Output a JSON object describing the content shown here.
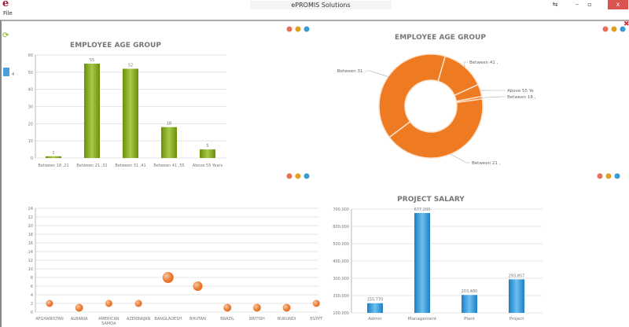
{
  "window": {
    "title": "ePROMIS Solutions",
    "logo": "e",
    "menu": [
      "File"
    ],
    "controls": [
      "restore-icon",
      "minimize-icon",
      "maximize-icon",
      "close-icon"
    ]
  },
  "side": {
    "refresh_icon": "refresh-icon",
    "book_icon": "book-icon",
    "book_label": "4"
  },
  "panel_icons": [
    "pie-chart-icon",
    "color-wheel-icon",
    "settings-icon",
    "close-icon"
  ],
  "colors": {
    "green": "#7fa80e",
    "orange": "#ee7a22",
    "blue": "#2a93d8"
  },
  "chart_data": [
    {
      "type": "bar",
      "title": "EMPLOYEE AGE GROUP",
      "categories": [
        "Between 18 ,21",
        "Between 21 ,31",
        "Between 31 ,41",
        "Between 41 ,55",
        "Above 55 Years"
      ],
      "values": [
        1,
        55,
        52,
        18,
        5
      ],
      "ylim": [
        0,
        60
      ],
      "yticks": [
        0,
        10,
        20,
        30,
        40,
        50,
        60
      ],
      "grid": true
    },
    {
      "type": "pie",
      "title": "EMPLOYEE AGE GROUP",
      "donut": true,
      "labels": [
        "Between 18 ,",
        "Between 21 ,",
        "Between 31 ,",
        "Between 41 ,",
        "Above 55 Ye"
      ],
      "values": [
        1,
        55,
        52,
        18,
        5
      ]
    },
    {
      "type": "scatter",
      "title": "",
      "categories": [
        "AFGHANISTAN",
        "ALBANIA",
        "AMERICAN SAMOA",
        "AZERBAIJAN",
        "BANGLADESH",
        "BHUTAN",
        "BRAZIL",
        "BRITISH",
        "BURUNDI",
        "EGYPT"
      ],
      "values": [
        2,
        1,
        2,
        2,
        8,
        6,
        1,
        1,
        1,
        2
      ],
      "ylim": [
        0,
        24
      ],
      "yticks": [
        0,
        2,
        4,
        6,
        8,
        10,
        12,
        14,
        16,
        18,
        20,
        22,
        24
      ],
      "grid": true
    },
    {
      "type": "bar",
      "title": "PROJECT SALARY",
      "categories": [
        "Admin",
        "Management",
        "Plant",
        "Project"
      ],
      "values": [
        155770,
        677200,
        203480,
        293857
      ],
      "data_labels": [
        "155,770",
        "677,200",
        "203,480",
        "293,857"
      ],
      "ylim": [
        100000,
        700000
      ],
      "yticks": [
        "100,000",
        "200,000",
        "300,000",
        "400,000",
        "500,000",
        "600,000",
        "700,000"
      ],
      "grid": true
    }
  ]
}
